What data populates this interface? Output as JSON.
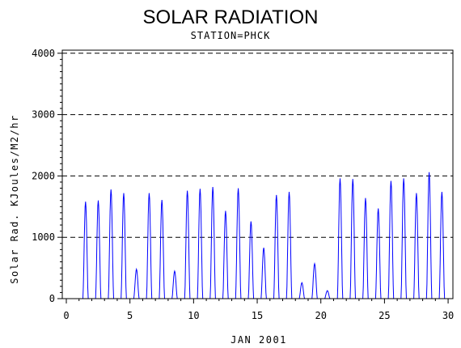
{
  "chart_data": {
    "type": "line",
    "title": "SOLAR RADIATION",
    "subtitle": "STATION=PHCK",
    "xlabel": "JAN 2001",
    "ylabel": "Solar Rad. KJoules/M2/hr",
    "xlim": [
      0,
      30.25
    ],
    "ylim": [
      0,
      4050
    ],
    "xticks": [
      0,
      5,
      10,
      15,
      20,
      25,
      30
    ],
    "yticks": [
      0,
      1000,
      2000,
      3000,
      4000
    ],
    "reference_lines": [
      1000,
      2000,
      3000,
      4000
    ],
    "grid": "horizontal dashed reference lines",
    "line_color": "#0000ff",
    "series": [
      {
        "daily_peaks": [
          {
            "day": 1,
            "peak": 1580
          },
          {
            "day": 2,
            "peak": 1600
          },
          {
            "day": 3,
            "peak": 1780
          },
          {
            "day": 4,
            "peak": 1720
          },
          {
            "day": 5,
            "peak": 480
          },
          {
            "day": 6,
            "peak": 1720
          },
          {
            "day": 7,
            "peak": 1610
          },
          {
            "day": 8,
            "peak": 450
          },
          {
            "day": 9,
            "peak": 1760
          },
          {
            "day": 10,
            "peak": 1790
          },
          {
            "day": 11,
            "peak": 1820
          },
          {
            "day": 12,
            "peak": 1430
          },
          {
            "day": 13,
            "peak": 1800
          },
          {
            "day": 14,
            "peak": 1260
          },
          {
            "day": 15,
            "peak": 830
          },
          {
            "day": 16,
            "peak": 1690
          },
          {
            "day": 17,
            "peak": 1740
          },
          {
            "day": 18,
            "peak": 260
          },
          {
            "day": 19,
            "peak": 570
          },
          {
            "day": 20,
            "peak": 130
          },
          {
            "day": 21,
            "peak": 1960
          },
          {
            "day": 22,
            "peak": 1950
          },
          {
            "day": 23,
            "peak": 1640
          },
          {
            "day": 24,
            "peak": 1470
          },
          {
            "day": 25,
            "peak": 1920
          },
          {
            "day": 26,
            "peak": 1960
          },
          {
            "day": 27,
            "peak": 1720
          },
          {
            "day": 28,
            "peak": 2060
          },
          {
            "day": 29,
            "peak": 1740
          },
          {
            "day": 30,
            "peak": 0
          }
        ]
      }
    ]
  }
}
